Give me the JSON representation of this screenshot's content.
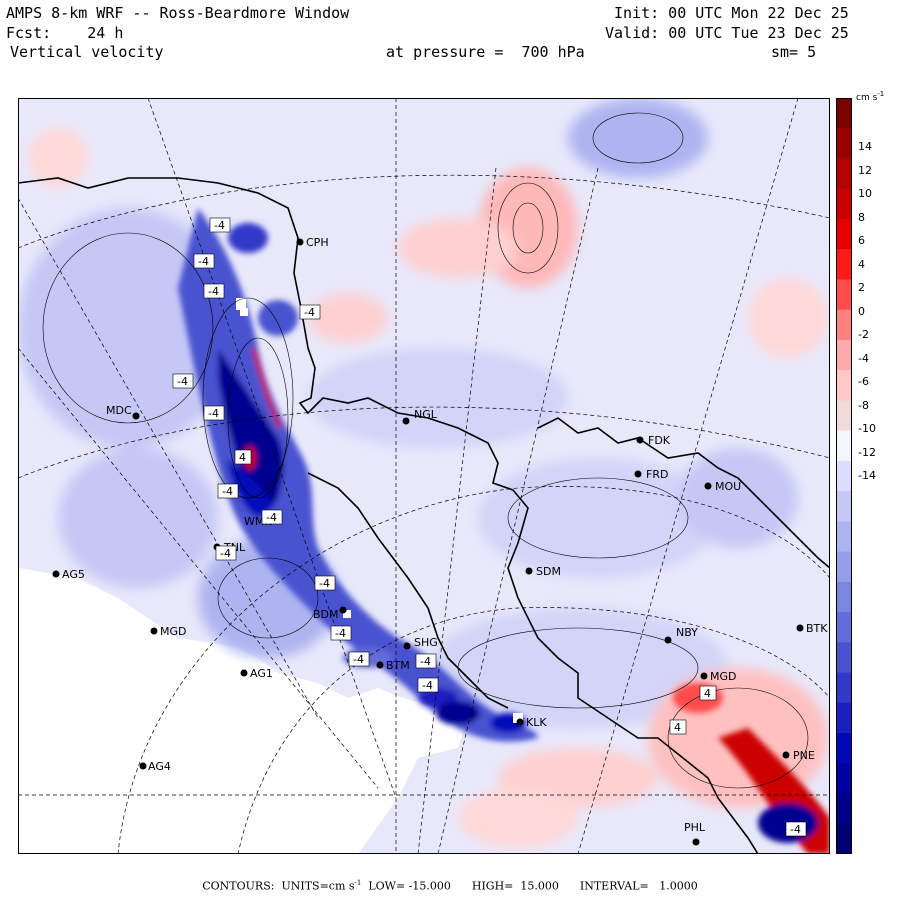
{
  "header": {
    "title": "AMPS 8-km WRF -- Ross-Beardmore Window",
    "fcst": "Fcst:    24 h",
    "variable": "Vertical velocity",
    "init": "Init: 00 UTC Mon 22 Dec 25",
    "valid": "Valid: 00 UTC Tue 23 Dec 25",
    "pressure": "at pressure =  700 hPa",
    "smoothing": "sm= 5"
  },
  "colorbar": {
    "unit_label": "cm s",
    "unit_exp": "-1",
    "ticks": [
      "14",
      "12",
      "10",
      "8",
      "6",
      "4",
      "2",
      "0",
      "-2",
      "-4",
      "-6",
      "-8",
      "-10",
      "-12",
      "-14"
    ],
    "colors": [
      "#7a0000",
      "#990000",
      "#b30000",
      "#cc0000",
      "#e60000",
      "#ff1a1a",
      "#ff4d4d",
      "#ff8080",
      "#ffaaaa",
      "#ffc8c8",
      "#f0dada",
      "#f5f5ff",
      "#dcdcff",
      "#c5c8f5",
      "#aeb4f0",
      "#969ee8",
      "#7c85e0",
      "#636cd8",
      "#4a52d0",
      "#3238c8",
      "#1a1fc0",
      "#0008b8",
      "#0000a0",
      "#000088",
      "#000070"
    ]
  },
  "stations": [
    {
      "id": "CPH"
    },
    {
      "id": "MDC"
    },
    {
      "id": "NGL"
    },
    {
      "id": "FDK"
    },
    {
      "id": "FRD"
    },
    {
      "id": "MOU"
    },
    {
      "id": "TNL"
    },
    {
      "id": "AG5"
    },
    {
      "id": "SDM"
    },
    {
      "id": "MGD"
    },
    {
      "id": "BDM"
    },
    {
      "id": "SHG"
    },
    {
      "id": "AG1"
    },
    {
      "id": "NBY"
    },
    {
      "id": "BTK"
    },
    {
      "id": "KLK"
    },
    {
      "id": "AG4"
    },
    {
      "id": "PNE"
    },
    {
      "id": "PHL"
    },
    {
      "id": "WMN"
    },
    {
      "id": "MGD2",
      "label": "MGD"
    },
    {
      "id": "BTM"
    }
  ],
  "contour_labels": [
    "-4",
    "-4",
    "-4",
    "-4",
    "-4",
    "-4",
    "-4",
    "-4",
    "4",
    "-4",
    "-4",
    "-4",
    "-4",
    "-4",
    "-4",
    "4",
    "4",
    "-4"
  ],
  "footer": {
    "prefix": "CONTOURS:  UNITS=cm s",
    "exp": "-1",
    "rest": "  LOW= -15.000      HIGH=  15.000      INTERVAL=   1.0000"
  }
}
